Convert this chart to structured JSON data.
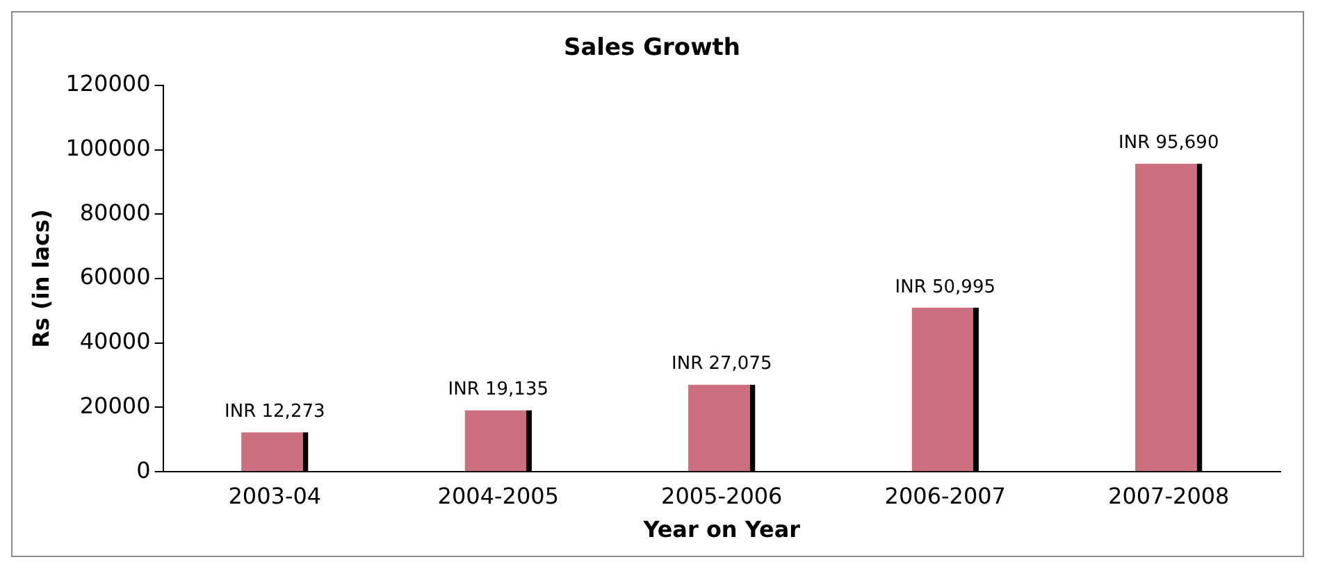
{
  "chart_data": {
    "type": "bar",
    "title": "Sales Growth",
    "xlabel": "Year on Year",
    "ylabel": "Rs (in lacs)",
    "categories": [
      "2003-04",
      "2004-2005",
      "2005-2006",
      "2006-2007",
      "2007-2008"
    ],
    "values": [
      12273,
      19135,
      27075,
      50995,
      95690
    ],
    "value_labels": [
      "INR 12,273",
      "INR 19,135",
      "INR 27,075",
      "INR 50,995",
      "INR 95,690"
    ],
    "color": "#cc6f7f",
    "ylim": [
      0,
      120000
    ],
    "yticks": [
      0,
      20000,
      40000,
      60000,
      80000,
      100000,
      120000
    ],
    "grid": false,
    "legend": false
  }
}
